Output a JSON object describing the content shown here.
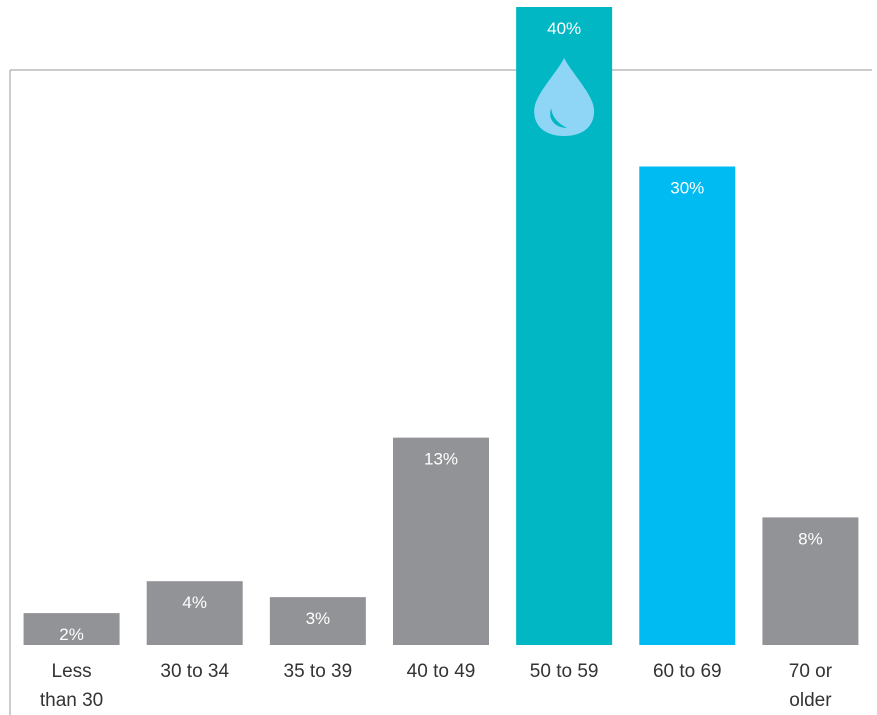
{
  "chart_data": {
    "type": "bar",
    "categories": [
      [
        "Less",
        "than 30"
      ],
      [
        "30 to 34"
      ],
      [
        "35 to 39"
      ],
      [
        "40 to 49"
      ],
      [
        "50 to 59"
      ],
      [
        "60 to 69"
      ],
      [
        "70 or",
        "older"
      ]
    ],
    "values": [
      2,
      4,
      3,
      13,
      40,
      30,
      8
    ],
    "value_labels": [
      "2%",
      "4%",
      "3%",
      "13%",
      "40%",
      "30%",
      "8%"
    ],
    "ylim": [
      0,
      40
    ],
    "grid": false,
    "legend": "none",
    "colors": {
      "default": "#929396",
      "highlight_primary": "#00b7c3",
      "highlight_secondary": "#00baf2",
      "icon": "#8fd6f6",
      "axis": "#9a9a9a",
      "label_inside": "#ffffff",
      "label_outside": "#333333"
    },
    "bar_colors": [
      "default",
      "default",
      "default",
      "default",
      "highlight_primary",
      "highlight_secondary",
      "default"
    ],
    "icon": {
      "name": "water-drop-icon",
      "bar_index": 4
    }
  }
}
